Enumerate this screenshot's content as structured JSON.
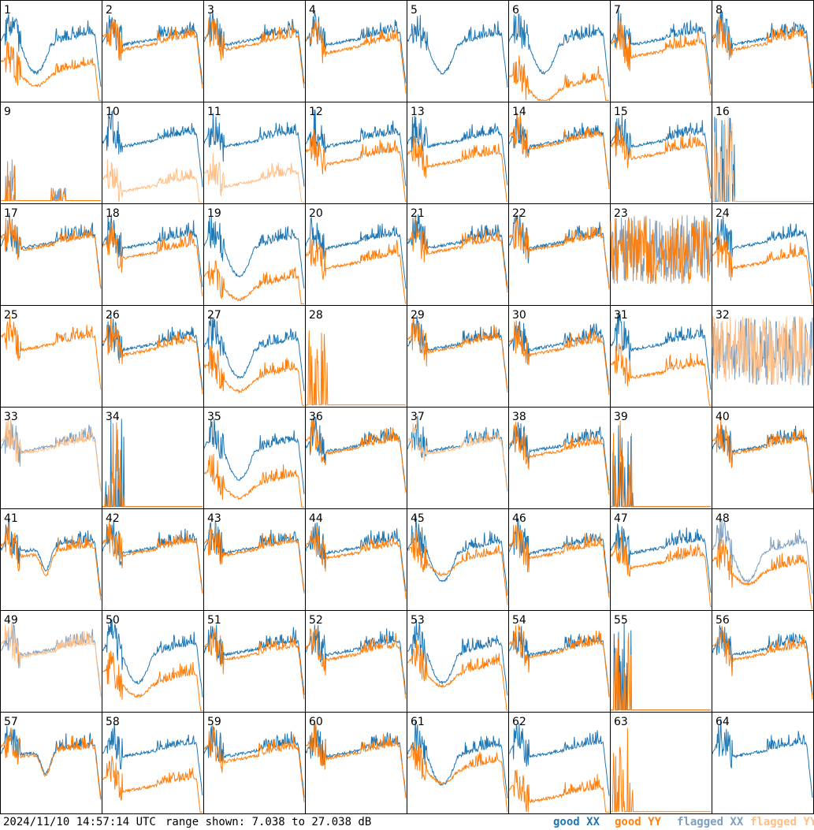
{
  "footer": {
    "timestamp": "2024/11/10 14:57:14 UTC",
    "range": "range shown: 7.038 to 27.038 dB"
  },
  "legend": {
    "good_xx": {
      "label": "good XX",
      "color": "#1f77b4"
    },
    "good_yy": {
      "label": "good YY",
      "color": "#ff7f0e"
    },
    "flagged_xx": {
      "label": "flagged XX",
      "color": "#7f9fbf"
    },
    "flagged_yy": {
      "label": "flagged YY",
      "color": "#ffbf87"
    }
  },
  "chart_data": {
    "type": "line",
    "ylim": [
      7.038,
      27.038
    ],
    "yunit": "dB",
    "grid_columns": 8,
    "grid_rows": 8,
    "panels": [
      {
        "id": "1",
        "xx": "good",
        "yy": "good",
        "shape": "dip",
        "split": 0.3
      },
      {
        "id": "2",
        "xx": "good",
        "yy": "good",
        "shape": "flat",
        "split": 0.05
      },
      {
        "id": "3",
        "xx": "good",
        "yy": "good",
        "shape": "flat",
        "split": 0.05
      },
      {
        "id": "4",
        "xx": "good",
        "yy": "good",
        "shape": "flat",
        "split": 0.08
      },
      {
        "id": "5",
        "xx": "good",
        "yy": "none",
        "shape": "dip",
        "split": 0.0
      },
      {
        "id": "6",
        "xx": "good",
        "yy": "good",
        "shape": "dip",
        "split": 0.45
      },
      {
        "id": "7",
        "xx": "good",
        "yy": "good",
        "shape": "flat",
        "split": 0.12
      },
      {
        "id": "8",
        "xx": "good",
        "yy": "good",
        "shape": "flat",
        "split": 0.05
      },
      {
        "id": "9",
        "xx": "flagged",
        "yy": "good",
        "shape": "sparse",
        "split": 0.0
      },
      {
        "id": "10",
        "xx": "good",
        "yy": "flagged",
        "shape": "flat",
        "split": 0.45
      },
      {
        "id": "11",
        "xx": "good",
        "yy": "flagged",
        "shape": "flat",
        "split": 0.4
      },
      {
        "id": "12",
        "xx": "good",
        "yy": "good",
        "shape": "flat",
        "split": 0.18
      },
      {
        "id": "13",
        "xx": "good",
        "yy": "good",
        "shape": "flat",
        "split": 0.2
      },
      {
        "id": "14",
        "xx": "good",
        "yy": "good",
        "shape": "flat",
        "split": 0.02
      },
      {
        "id": "15",
        "xx": "good",
        "yy": "good",
        "shape": "flat",
        "split": 0.12
      },
      {
        "id": "16",
        "xx": "good",
        "yy": "flagged",
        "shape": "spike",
        "split": 0.0
      },
      {
        "id": "17",
        "xx": "good",
        "yy": "good",
        "shape": "flat",
        "split": 0.02
      },
      {
        "id": "18",
        "xx": "good",
        "yy": "good",
        "shape": "flat",
        "split": 0.1
      },
      {
        "id": "19",
        "xx": "good",
        "yy": "good",
        "shape": "dip",
        "split": 0.4
      },
      {
        "id": "20",
        "xx": "good",
        "yy": "good",
        "shape": "flat",
        "split": 0.2
      },
      {
        "id": "21",
        "xx": "good",
        "yy": "good",
        "shape": "flat",
        "split": 0.05
      },
      {
        "id": "22",
        "xx": "good",
        "yy": "good",
        "shape": "flat",
        "split": 0.02
      },
      {
        "id": "23",
        "xx": "flagged",
        "yy": "good",
        "shape": "noisy",
        "split": 0.0
      },
      {
        "id": "24",
        "xx": "good",
        "yy": "good",
        "shape": "flat",
        "split": 0.2
      },
      {
        "id": "25",
        "xx": "none",
        "yy": "good",
        "shape": "flat",
        "split": 0.0
      },
      {
        "id": "26",
        "xx": "good",
        "yy": "good",
        "shape": "flat",
        "split": 0.05
      },
      {
        "id": "27",
        "xx": "good",
        "yy": "good",
        "shape": "dip",
        "split": 0.3
      },
      {
        "id": "28",
        "xx": "none",
        "yy": "good",
        "shape": "bursts",
        "split": 0.0
      },
      {
        "id": "29",
        "xx": "good",
        "yy": "good",
        "shape": "flat",
        "split": 0.02
      },
      {
        "id": "30",
        "xx": "good",
        "yy": "good",
        "shape": "flat",
        "split": 0.05
      },
      {
        "id": "31",
        "xx": "good",
        "yy": "good",
        "shape": "flat",
        "split": 0.28
      },
      {
        "id": "32",
        "xx": "flagged",
        "yy": "flagged",
        "shape": "noisy",
        "split": 0.0
      },
      {
        "id": "33",
        "xx": "flagged",
        "yy": "flagged",
        "shape": "flat",
        "split": 0.02
      },
      {
        "id": "34",
        "xx": "good",
        "yy": "good",
        "shape": "bursts",
        "split": 0.0
      },
      {
        "id": "35",
        "xx": "good",
        "yy": "good",
        "shape": "dip",
        "split": 0.35
      },
      {
        "id": "36",
        "xx": "good",
        "yy": "good",
        "shape": "flat",
        "split": 0.02
      },
      {
        "id": "37",
        "xx": "good",
        "yy": "flagged",
        "shape": "flat",
        "split": 0.02
      },
      {
        "id": "38",
        "xx": "good",
        "yy": "good",
        "shape": "flat",
        "split": 0.05
      },
      {
        "id": "39",
        "xx": "good",
        "yy": "good",
        "shape": "spike",
        "split": 0.0
      },
      {
        "id": "40",
        "xx": "good",
        "yy": "good",
        "shape": "flat",
        "split": 0.02
      },
      {
        "id": "41",
        "xx": "good",
        "yy": "good",
        "shape": "bump",
        "split": 0.05
      },
      {
        "id": "42",
        "xx": "good",
        "yy": "good",
        "shape": "flat",
        "split": 0.02
      },
      {
        "id": "43",
        "xx": "good",
        "yy": "good",
        "shape": "flat",
        "split": 0.02
      },
      {
        "id": "44",
        "xx": "good",
        "yy": "good",
        "shape": "flat",
        "split": 0.05
      },
      {
        "id": "45",
        "xx": "good",
        "yy": "good",
        "shape": "dip",
        "split": 0.1
      },
      {
        "id": "46",
        "xx": "good",
        "yy": "good",
        "shape": "flat",
        "split": 0.05
      },
      {
        "id": "47",
        "xx": "good",
        "yy": "good",
        "shape": "flat",
        "split": 0.15
      },
      {
        "id": "48",
        "xx": "flagged",
        "yy": "good",
        "shape": "dip",
        "split": 0.2
      },
      {
        "id": "49",
        "xx": "flagged",
        "yy": "flagged",
        "shape": "flat",
        "split": 0.02
      },
      {
        "id": "50",
        "xx": "good",
        "yy": "good",
        "shape": "dip",
        "split": 0.3
      },
      {
        "id": "51",
        "xx": "good",
        "yy": "good",
        "shape": "flat",
        "split": 0.05
      },
      {
        "id": "52",
        "xx": "good",
        "yy": "good",
        "shape": "flat",
        "split": 0.05
      },
      {
        "id": "53",
        "xx": "good",
        "yy": "good",
        "shape": "dip",
        "split": 0.2
      },
      {
        "id": "54",
        "xx": "good",
        "yy": "good",
        "shape": "flat",
        "split": 0.02
      },
      {
        "id": "55",
        "xx": "good",
        "yy": "good",
        "shape": "spike",
        "split": 0.0
      },
      {
        "id": "56",
        "xx": "good",
        "yy": "good",
        "shape": "flat",
        "split": 0.05
      },
      {
        "id": "57",
        "xx": "good",
        "yy": "good",
        "shape": "bump",
        "split": 0.02
      },
      {
        "id": "58",
        "xx": "good",
        "yy": "good",
        "shape": "flat",
        "split": 0.35
      },
      {
        "id": "59",
        "xx": "good",
        "yy": "good",
        "shape": "flat",
        "split": 0.05
      },
      {
        "id": "60",
        "xx": "good",
        "yy": "good",
        "shape": "flat",
        "split": 0.02
      },
      {
        "id": "61",
        "xx": "good",
        "yy": "good",
        "shape": "dip",
        "split": 0.15
      },
      {
        "id": "62",
        "xx": "good",
        "yy": "good",
        "shape": "flat",
        "split": 0.45
      },
      {
        "id": "63",
        "xx": "none",
        "yy": "good",
        "shape": "bursts",
        "split": 0.0
      },
      {
        "id": "64",
        "xx": "good",
        "yy": "none",
        "shape": "flat",
        "split": 0.0
      }
    ]
  }
}
